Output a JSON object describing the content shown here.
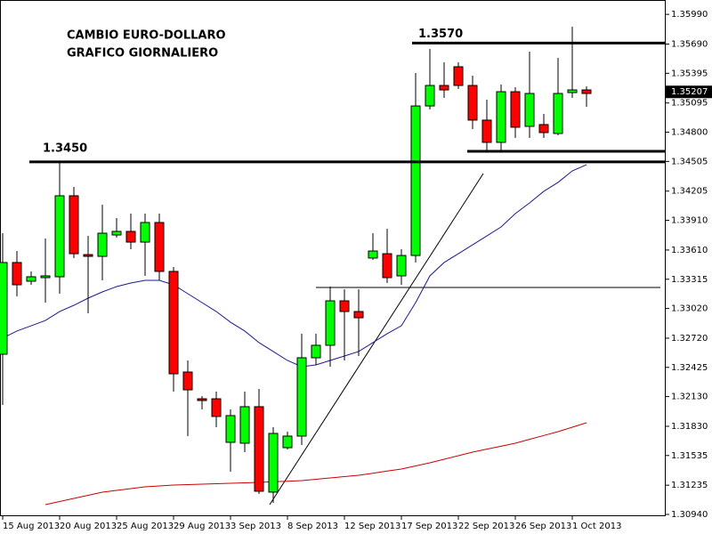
{
  "chart_data": {
    "type": "candlestick",
    "title": "CAMBIO EURO-DOLLARO",
    "subtitle": "GRAFICO GIORNALIERO",
    "categories": [
      "15 Aug 2013",
      null,
      null,
      null,
      "20 Aug 2013",
      null,
      null,
      null,
      "25 Aug 2013",
      null,
      null,
      null,
      "29 Aug 2013",
      null,
      null,
      null,
      "3 Sep 2013",
      null,
      null,
      null,
      "8 Sep 2013",
      null,
      null,
      null,
      "12 Sep 2013",
      null,
      null,
      null,
      "17 Sep 2013",
      null,
      null,
      null,
      "22 Sep 2013",
      null,
      null,
      null,
      "26 Sep 2013",
      null,
      null,
      null,
      "1 Oct 2013",
      null
    ],
    "open": [
      1.32558,
      1.33484,
      1.33295,
      1.33331,
      1.3334,
      1.34158,
      1.33564,
      1.33546,
      1.33762,
      1.33798,
      1.3369,
      1.33888,
      1.33394,
      1.32378,
      1.32108,
      1.32108,
      1.31668,
      1.31659,
      1.32028,
      1.31165,
      1.31614,
      1.31731,
      1.32522,
      1.32648,
      1.33097,
      1.32989,
      1.33529,
      1.33573,
      1.33349,
      1.33555,
      1.35065,
      1.35272,
      1.35461,
      1.35272,
      1.34922,
      1.34697,
      1.35209,
      1.34859,
      1.34877,
      1.34787,
      1.352,
      1.35227
    ],
    "high": [
      1.3378,
      1.336,
      1.33394,
      1.33726,
      1.3449,
      1.34248,
      1.33753,
      1.34068,
      1.33933,
      1.33978,
      1.33978,
      1.33978,
      1.33439,
      1.32495,
      1.32135,
      1.3218,
      1.32001,
      1.3218,
      1.32207,
      1.31821,
      1.31776,
      1.32765,
      1.32765,
      1.33241,
      1.33214,
      1.33214,
      1.3378,
      1.33825,
      1.33618,
      1.35398,
      1.35641,
      1.35506,
      1.35506,
      1.35371,
      1.35128,
      1.35281,
      1.35254,
      1.35614,
      1.34985,
      1.35551,
      1.35865,
      1.35263
    ],
    "low": [
      1.32045,
      1.33142,
      1.33259,
      1.33079,
      1.33169,
      1.33529,
      1.32971,
      1.33304,
      1.33735,
      1.33618,
      1.33349,
      1.33304,
      1.3218,
      1.31731,
      1.32001,
      1.31821,
      1.31371,
      1.31569,
      1.31147,
      1.31057,
      1.31596,
      1.31641,
      1.3245,
      1.32432,
      1.32495,
      1.3254,
      1.33511,
      1.33277,
      1.33259,
      1.33484,
      1.3503,
      1.35146,
      1.35236,
      1.34832,
      1.34607,
      1.34607,
      1.34742,
      1.34742,
      1.34742,
      1.34769,
      1.35146,
      1.35056
    ],
    "close": [
      1.33484,
      1.33259,
      1.3334,
      1.33349,
      1.34158,
      1.33573,
      1.33546,
      1.3378,
      1.33798,
      1.3369,
      1.33888,
      1.33394,
      1.3236,
      1.32198,
      1.3209,
      1.31929,
      1.31938,
      1.32028,
      1.31174,
      1.31758,
      1.31731,
      1.32522,
      1.32648,
      1.33097,
      1.32989,
      1.32926,
      1.336,
      1.33331,
      1.33555,
      1.35065,
      1.35272,
      1.35227,
      1.35272,
      1.34922,
      1.34697,
      1.35209,
      1.3485,
      1.35191,
      1.34796,
      1.35191,
      1.35227,
      1.35191
    ],
    "up_color": "#00ff00",
    "down_color": "#ff0000",
    "lines": [
      {
        "color": "#1a1a8c",
        "values": [
          1.3272,
          1.32792,
          1.32845,
          1.32899,
          1.32989,
          1.33052,
          1.33124,
          1.33187,
          1.33241,
          1.33277,
          1.33304,
          1.33304,
          1.33259,
          1.33169,
          1.33079,
          1.32989,
          1.32881,
          1.32792,
          1.32675,
          1.32585,
          1.32495,
          1.32432,
          1.3245,
          1.32495,
          1.3254,
          1.32585,
          1.32675,
          1.32765,
          1.32845,
          1.33079,
          1.33349,
          1.33484,
          1.33573,
          1.33663,
          1.33753,
          1.33843,
          1.33978,
          1.34086,
          1.34203,
          1.34293,
          1.34409,
          1.34472
        ]
      },
      {
        "color": "#cc0000",
        "values": [
          null,
          null,
          null,
          1.31039,
          1.3107,
          1.31102,
          1.31133,
          1.31165,
          1.31183,
          1.31201,
          1.31219,
          1.31228,
          1.31237,
          1.31241,
          1.31246,
          1.3125,
          1.31255,
          1.31259,
          1.31264,
          1.3127,
          1.31275,
          1.31282,
          1.31295,
          1.31309,
          1.31322,
          1.31335,
          1.31356,
          1.31378,
          1.31398,
          1.3143,
          1.31461,
          1.31497,
          1.31533,
          1.31569,
          1.31599,
          1.31629,
          1.31659,
          1.31698,
          1.31737,
          1.31776,
          1.31821,
          1.31866
        ]
      }
    ],
    "annotations": [
      {
        "value": 1.345,
        "label": "1.3450"
      },
      {
        "value": 1.357,
        "label": "1.3570"
      }
    ],
    "last_price": {
      "value": 1.35207,
      "label": "1.35207"
    },
    "ylim": [
      1.30922,
      1.36135
    ],
    "yticks": [
      {
        "value": 1.3599,
        "label": "1.35990"
      },
      {
        "value": 1.3569,
        "label": "1.35690"
      },
      1.35395,
      1.35095,
      {
        "value": 1.348,
        "label": "1.34800"
      },
      1.34505,
      1.34205,
      {
        "value": 1.3391,
        "label": "1.33910"
      },
      {
        "value": 1.3361,
        "label": "1.33610"
      },
      1.33315,
      {
        "value": 1.3302,
        "label": "1.33020"
      },
      {
        "value": 1.3272,
        "label": "1.32720"
      },
      1.32425,
      {
        "value": 1.3213,
        "label": "1.32130"
      },
      {
        "value": 1.3183,
        "label": "1.31830"
      },
      1.31535,
      1.31235,
      {
        "value": 1.3094,
        "label": "1.30940"
      }
    ]
  }
}
